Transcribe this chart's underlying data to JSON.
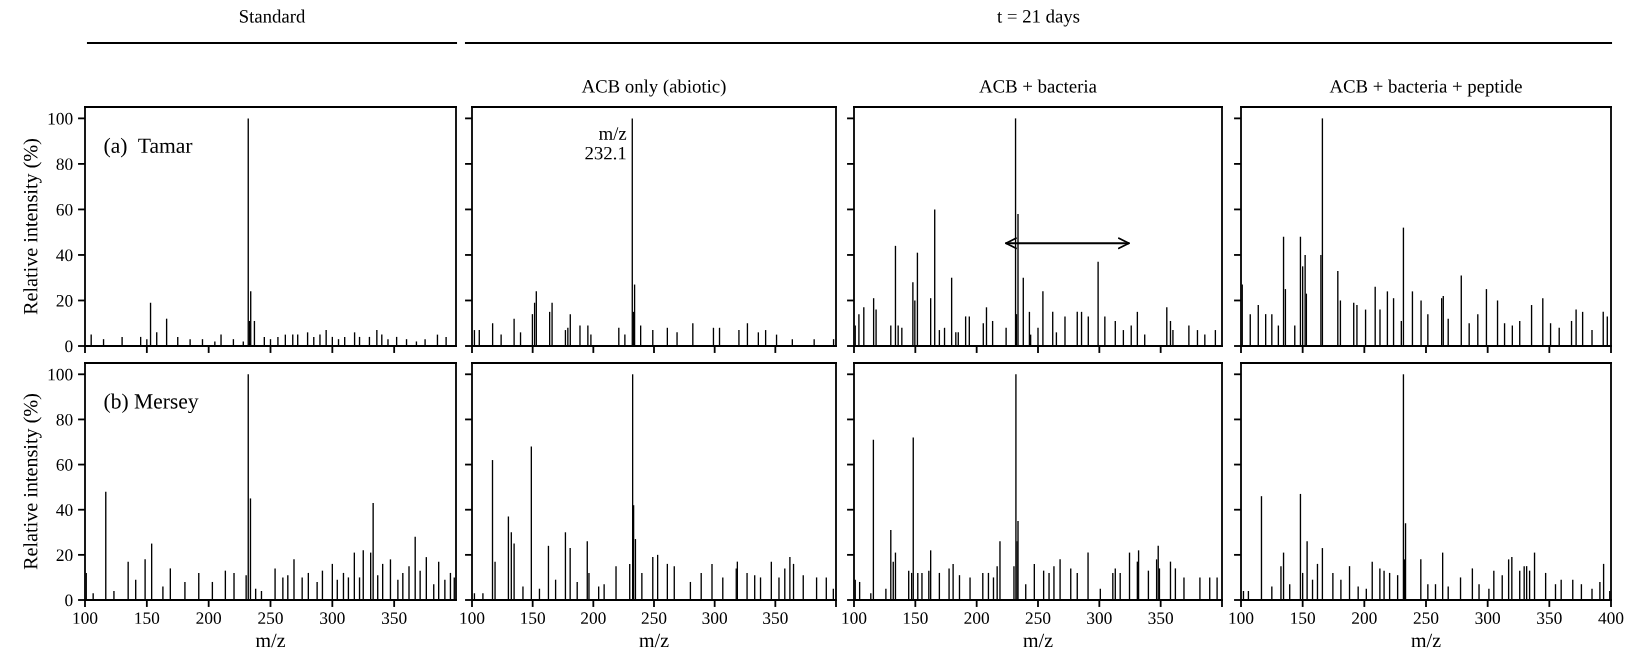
{
  "chart_data": [
    {
      "type": "bar",
      "title": "Standard",
      "ylabel": "Relative intensity (%)",
      "xlim": [
        100,
        400
      ],
      "ylim": [
        0,
        105
      ],
      "xticks": [
        100,
        150,
        200,
        250,
        300,
        350
      ],
      "yticks": [
        0,
        20,
        40,
        60,
        80,
        100
      ],
      "tick_labels": "y",
      "annotations": [
        "(a)  Tamar"
      ],
      "series": [
        {
          "color": "#000000",
          "x": [
            105,
            115,
            130,
            145,
            150,
            153,
            158,
            166,
            175,
            185,
            195,
            205,
            210,
            220,
            228,
            232,
            233,
            234,
            237,
            245,
            250,
            256,
            262,
            268,
            272,
            280,
            285,
            290,
            295,
            300,
            305,
            310,
            318,
            322,
            330,
            336,
            340,
            345,
            352,
            360,
            368,
            375,
            385,
            392
          ],
          "values": [
            5,
            3,
            4,
            4,
            3,
            19,
            6,
            12,
            4,
            3,
            3,
            2,
            5,
            3,
            2,
            100,
            11,
            24,
            11,
            4,
            3,
            4,
            5,
            5,
            5,
            6,
            4,
            5,
            7,
            4,
            3,
            4,
            6,
            4,
            4,
            7,
            5,
            3,
            4,
            3,
            2,
            3,
            5,
            4
          ]
        }
      ]
    },
    {
      "type": "bar",
      "title": "ACB only (abiotic)",
      "xlim": [
        100,
        400
      ],
      "ylim": [
        0,
        105
      ],
      "xticks": [
        100,
        150,
        200,
        250,
        300,
        350
      ],
      "yticks": [
        0,
        20,
        40,
        60,
        80,
        100
      ],
      "tick_labels": false,
      "annotations": [
        {
          "text": "m/z\n232.1",
          "x": 232.1,
          "y": 100
        }
      ],
      "series": [
        {
          "color": "#000000",
          "x": [
            102,
            106,
            117,
            124,
            134.7,
            140,
            149.8,
            151.6,
            153,
            164,
            166,
            177,
            179,
            181,
            189,
            195.5,
            198,
            221,
            226,
            232.1,
            233,
            234,
            239,
            249,
            261,
            269,
            282,
            299,
            304,
            320,
            327,
            336,
            342,
            351,
            364,
            382,
            398
          ],
          "values": [
            7,
            7,
            10,
            5,
            12,
            6,
            14,
            19,
            24,
            15,
            19,
            7,
            8,
            14,
            9,
            9,
            5,
            8,
            5,
            100,
            15,
            27,
            9,
            7,
            8,
            6,
            10,
            8,
            8,
            7,
            10,
            6,
            7,
            5,
            3,
            3,
            3
          ]
        }
      ]
    },
    {
      "type": "bar",
      "title": "t = 21 days",
      "subtitle": "ACB + bacteria",
      "xlim": [
        100,
        400
      ],
      "ylim": [
        0,
        105
      ],
      "xticks": [
        100,
        150,
        200,
        250,
        300,
        350
      ],
      "yticks": [
        0,
        20,
        40,
        60,
        80,
        100
      ],
      "tick_labels": false,
      "series": [
        {
          "color": "#000000",
          "x": [
            101,
            104,
            108,
            116,
            118,
            130,
            133.8,
            136,
            139,
            148,
            149.6,
            151.7,
            162.5,
            165.8,
            169.6,
            173.8,
            179.6,
            183,
            185,
            191,
            194,
            205.4,
            208,
            213,
            224,
            231.7,
            232.5,
            233.7,
            238,
            243,
            244,
            250,
            254,
            262,
            265,
            272,
            282,
            285.5,
            291,
            299,
            304.5,
            313,
            319.6,
            326,
            331,
            337,
            355,
            358,
            360,
            373,
            380,
            386,
            394.6
          ],
          "values": [
            9,
            14,
            17,
            21,
            16,
            9,
            44,
            9,
            8,
            28,
            20,
            41,
            21,
            60,
            7,
            8,
            30,
            6,
            6,
            13,
            13,
            10,
            17,
            11,
            8,
            100,
            14,
            58,
            30,
            15,
            5,
            8,
            24,
            15,
            6,
            13,
            15,
            15,
            13,
            37,
            13,
            11,
            7,
            9,
            15,
            5,
            17,
            11,
            7,
            9,
            7,
            5,
            7
          ]
        }
      ]
    },
    {
      "type": "bar",
      "title": "ACB + bacteria + peptide",
      "xlim": [
        100,
        400
      ],
      "ylim": [
        0,
        105
      ],
      "xticks": [
        100,
        150,
        200,
        250,
        300,
        350,
        400
      ],
      "yticks": [
        0,
        20,
        40,
        60,
        80,
        100
      ],
      "tick_labels": false,
      "series": [
        {
          "color": "#000000",
          "x": [
            101,
            107.5,
            114,
            120,
            125,
            130.3,
            134.5,
            136,
            143.6,
            148.2,
            150,
            152,
            153,
            164.8,
            166,
            178.5,
            180.6,
            191.4,
            194,
            201,
            208.8,
            212.7,
            218.7,
            223.7,
            230,
            231.7,
            239,
            246,
            251.5,
            262.7,
            264,
            268,
            278.6,
            285,
            292,
            299,
            308,
            313.7,
            320,
            326,
            335.6,
            344.7,
            351,
            358,
            368,
            371.7,
            377,
            384.6,
            393.7,
            397
          ],
          "values": [
            27,
            14,
            18,
            14,
            14,
            9,
            48,
            25,
            9,
            48,
            35,
            40,
            23,
            40,
            100,
            33,
            20,
            19,
            18,
            16,
            26,
            16,
            24,
            21,
            11,
            52,
            24,
            20,
            14,
            21,
            22,
            12,
            31,
            10,
            14,
            25,
            20,
            10,
            9,
            11,
            18,
            21,
            10,
            8,
            11,
            16,
            15,
            7,
            15,
            13
          ]
        }
      ]
    },
    {
      "type": "bar",
      "xlabel": "m/z",
      "ylabel": "Relative intensity (%)",
      "xlim": [
        100,
        400
      ],
      "ylim": [
        0,
        105
      ],
      "xticks": [
        100,
        150,
        200,
        250,
        300,
        350
      ],
      "yticks": [
        0,
        20,
        40,
        60,
        80,
        100
      ],
      "annotations": [
        "(b) Mersey"
      ],
      "series": [
        {
          "color": "#000000",
          "x": [
            101,
            106.6,
            116.8,
            123.4,
            134.9,
            141,
            148.6,
            153.9,
            163,
            169,
            180.8,
            192,
            203,
            213.5,
            220.5,
            230.3,
            232,
            233.8,
            238,
            242.7,
            253.7,
            260,
            264,
            269,
            275.6,
            280.6,
            287.7,
            292,
            300,
            304,
            309,
            313,
            317.8,
            322,
            325,
            331,
            333,
            336.7,
            340.7,
            347,
            353,
            357,
            362,
            367,
            371,
            376,
            382,
            386,
            391,
            395.5,
            398.6
          ],
          "values": [
            12,
            3,
            48,
            4,
            17,
            9,
            18,
            25,
            6,
            14,
            8,
            12,
            8,
            13,
            12,
            11,
            100,
            45,
            5,
            4,
            14,
            10,
            11,
            18,
            10,
            12,
            8,
            13,
            16,
            9,
            12,
            10,
            21,
            10,
            22,
            21,
            43,
            11,
            16,
            18,
            9,
            12,
            15,
            28,
            13,
            19,
            7,
            17,
            9,
            12,
            10
          ]
        }
      ]
    },
    {
      "type": "bar",
      "xlabel": "m/z",
      "xlim": [
        100,
        400
      ],
      "ylim": [
        0,
        105
      ],
      "xticks": [
        100,
        150,
        200,
        250,
        300,
        350,
        {
          "value": 400,
          "label": null
        }
      ],
      "yticks": [
        0,
        20,
        40,
        60,
        80,
        100
      ],
      "tick_labels": "x",
      "series": [
        {
          "color": "#000000",
          "x": [
            102,
            109,
            116.9,
            119,
            130,
            132.4,
            134.7,
            142,
            148.9,
            155.6,
            163,
            168.9,
            177,
            180.9,
            186.7,
            195,
            196.4,
            204.4,
            208.9,
            218.7,
            230,
            232.4,
            233.2,
            234.7,
            240,
            249,
            253,
            261,
            266.7,
            280,
            288.9,
            297.8,
            306.7,
            317.8,
            318.7,
            326.7,
            333,
            337.8,
            346.7,
            353,
            357.8,
            362,
            365,
            373,
            384,
            392,
            397.8
          ],
          "values": [
            3,
            3,
            62,
            17,
            37,
            30,
            25,
            6,
            68,
            5,
            24,
            9,
            30,
            23,
            8,
            26,
            12,
            6,
            7,
            15,
            16,
            100,
            42,
            27,
            12,
            19,
            20,
            16,
            15,
            8,
            12,
            16,
            10,
            14,
            17,
            12,
            11,
            10,
            17,
            10,
            14,
            19,
            16,
            11,
            10,
            10,
            5
          ]
        }
      ]
    },
    {
      "type": "bar",
      "xlabel": "m/z",
      "xlim": [
        100,
        400
      ],
      "ylim": [
        0,
        105
      ],
      "xticks": [
        100,
        150,
        200,
        250,
        300,
        350,
        {
          "value": 400,
          "label": null
        }
      ],
      "yticks": [
        0,
        20,
        40,
        60,
        80,
        100
      ],
      "tick_labels": "x",
      "series": [
        {
          "color": "#000000",
          "x": [
            101,
            104.6,
            113.7,
            115.8,
            126,
            130,
            132,
            133.8,
            144.6,
            147,
            148.3,
            152,
            155.4,
            161,
            162.5,
            169.6,
            177.5,
            180.8,
            186,
            194.6,
            205,
            209.6,
            213.7,
            216.7,
            219,
            230.4,
            232,
            232.9,
            233.7,
            240,
            247,
            254.6,
            259,
            263,
            268,
            276.7,
            282,
            290.8,
            300.8,
            311,
            313,
            317,
            324.6,
            331,
            332,
            340,
            346.7,
            348,
            349,
            358,
            362,
            369,
            382,
            390,
            396
          ],
          "values": [
            9,
            8,
            3,
            71,
            5,
            31,
            17,
            21,
            13,
            12,
            72,
            12,
            12,
            13,
            22,
            12,
            14,
            16,
            11,
            10,
            12,
            12,
            10,
            15,
            26,
            15,
            100,
            26,
            35,
            7,
            16,
            13,
            12,
            15,
            18,
            14,
            12,
            21,
            5,
            12,
            14,
            12,
            21,
            17,
            22,
            13,
            18,
            24,
            14,
            17,
            14,
            10,
            10,
            10,
            10
          ]
        }
      ]
    },
    {
      "type": "bar",
      "xlabel": "m/z",
      "xlim": [
        100,
        400
      ],
      "ylim": [
        0,
        105
      ],
      "xticks": [
        100,
        150,
        200,
        250,
        300,
        350,
        400
      ],
      "yticks": [
        0,
        20,
        40,
        60,
        80,
        100
      ],
      "tick_labels": "x",
      "series": [
        {
          "color": "#000000",
          "x": [
            102,
            106,
            116.6,
            125,
            132.4,
            134.5,
            139.5,
            148.2,
            150,
            153.6,
            158,
            162,
            166,
            174.5,
            181,
            188,
            195,
            201.6,
            206.4,
            212.6,
            216,
            220.5,
            227,
            231.7,
            232.6,
            233.4,
            245.8,
            251.5,
            257.7,
            263.5,
            268,
            278,
            287.6,
            293,
            301,
            305,
            311.8,
            317,
            319.6,
            326,
            329.6,
            331.6,
            334,
            338,
            347,
            355,
            359.6,
            369,
            376,
            384.6,
            391,
            394,
            399
          ],
          "values": [
            4,
            4,
            46,
            6,
            15,
            21,
            7,
            47,
            12,
            26,
            9,
            16,
            23,
            12,
            9,
            15,
            6,
            5,
            17,
            14,
            13,
            12,
            11,
            100,
            18,
            34,
            18,
            7,
            7,
            21,
            6,
            10,
            14,
            7,
            5,
            13,
            11,
            18,
            19,
            13,
            15,
            15,
            13,
            21,
            12,
            7,
            9,
            9,
            7,
            5,
            8,
            16,
            4
          ]
        }
      ]
    }
  ]
}
